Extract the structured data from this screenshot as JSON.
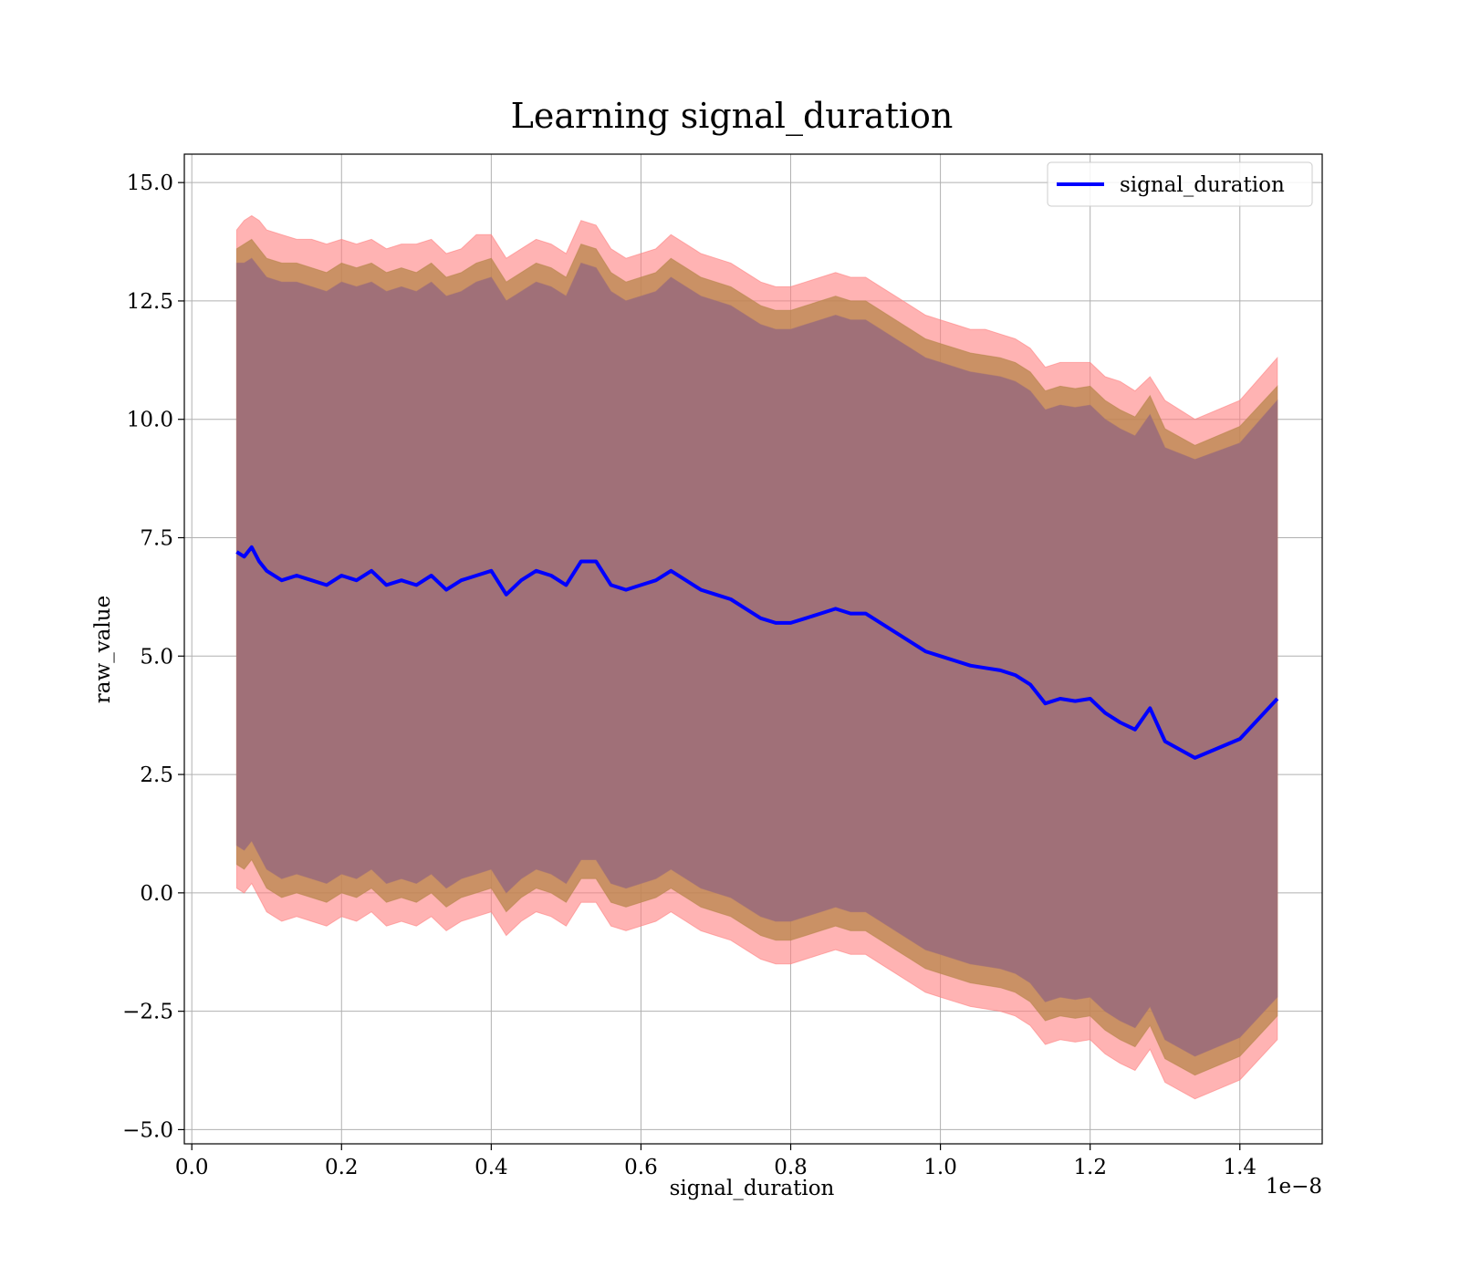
{
  "chart_data": {
    "type": "area",
    "title": "Learning signal_duration",
    "xlabel": "signal_duration",
    "ylabel": "raw_value",
    "x_offset_label": "1e−8",
    "xlim": [
      -0.01,
      1.51
    ],
    "ylim": [
      -5.3,
      15.6
    ],
    "xticks": [
      0.0,
      0.2,
      0.4,
      0.6,
      0.8,
      1.0,
      1.2,
      1.4
    ],
    "xtick_labels": [
      "0.0",
      "0.2",
      "0.4",
      "0.6",
      "0.8",
      "1.0",
      "1.2",
      "1.4"
    ],
    "yticks": [
      -5.0,
      -2.5,
      0.0,
      2.5,
      5.0,
      7.5,
      10.0,
      12.5,
      15.0
    ],
    "ytick_labels": [
      "−5.0",
      "−2.5",
      "0.0",
      "2.5",
      "5.0",
      "7.5",
      "10.0",
      "12.5",
      "15.0"
    ],
    "grid": true,
    "legend_position": "upper right",
    "colors": {
      "mean_line": "#0000ff",
      "outer_band": "#ff8080",
      "middle_band": "#b8864b",
      "inner_band": "#a07078"
    },
    "series": [
      {
        "name": "signal_duration",
        "x": [
          0.06,
          0.07,
          0.08,
          0.09,
          0.1,
          0.12,
          0.14,
          0.16,
          0.18,
          0.2,
          0.22,
          0.24,
          0.26,
          0.28,
          0.3,
          0.32,
          0.34,
          0.36,
          0.38,
          0.4,
          0.42,
          0.44,
          0.46,
          0.48,
          0.5,
          0.52,
          0.54,
          0.56,
          0.58,
          0.6,
          0.62,
          0.64,
          0.66,
          0.68,
          0.7,
          0.72,
          0.74,
          0.76,
          0.78,
          0.8,
          0.82,
          0.84,
          0.86,
          0.88,
          0.9,
          0.92,
          0.94,
          0.96,
          0.98,
          1.0,
          1.02,
          1.04,
          1.06,
          1.08,
          1.1,
          1.12,
          1.14,
          1.16,
          1.18,
          1.2,
          1.22,
          1.24,
          1.26,
          1.28,
          1.3,
          1.34,
          1.4,
          1.45
        ],
        "y": [
          7.2,
          7.1,
          7.3,
          7.0,
          6.8,
          6.6,
          6.7,
          6.6,
          6.5,
          6.7,
          6.6,
          6.8,
          6.5,
          6.6,
          6.5,
          6.7,
          6.4,
          6.6,
          6.7,
          6.8,
          6.3,
          6.6,
          6.8,
          6.7,
          6.5,
          7.0,
          7.0,
          6.5,
          6.4,
          6.5,
          6.6,
          6.8,
          6.6,
          6.4,
          6.3,
          6.2,
          6.0,
          5.8,
          5.7,
          5.7,
          5.8,
          5.9,
          6.0,
          5.9,
          5.9,
          5.7,
          5.5,
          5.3,
          5.1,
          5.0,
          4.9,
          4.8,
          4.75,
          4.7,
          4.6,
          4.4,
          4.0,
          4.1,
          4.05,
          4.1,
          3.8,
          3.6,
          3.45,
          3.9,
          3.2,
          2.85,
          3.25,
          4.1
        ]
      }
    ],
    "bands": [
      {
        "name": "outer",
        "upper": [
          14.0,
          14.2,
          14.3,
          14.2,
          14.0,
          13.9,
          13.8,
          13.8,
          13.7,
          13.8,
          13.7,
          13.8,
          13.6,
          13.7,
          13.7,
          13.8,
          13.5,
          13.6,
          13.9,
          13.9,
          13.4,
          13.6,
          13.8,
          13.7,
          13.5,
          14.2,
          14.1,
          13.6,
          13.4,
          13.5,
          13.6,
          13.9,
          13.7,
          13.5,
          13.4,
          13.3,
          13.1,
          12.9,
          12.8,
          12.8,
          12.9,
          13.0,
          13.1,
          13.0,
          13.0,
          12.8,
          12.6,
          12.4,
          12.2,
          12.1,
          12.0,
          11.9,
          11.9,
          11.8,
          11.7,
          11.5,
          11.1,
          11.2,
          11.2,
          11.2,
          10.9,
          10.8,
          10.6,
          10.9,
          10.4,
          10.0,
          10.4,
          11.3
        ],
        "lower": [
          0.1,
          0.0,
          0.2,
          -0.1,
          -0.4,
          -0.6,
          -0.5,
          -0.6,
          -0.7,
          -0.5,
          -0.6,
          -0.4,
          -0.7,
          -0.6,
          -0.7,
          -0.5,
          -0.8,
          -0.6,
          -0.5,
          -0.4,
          -0.9,
          -0.6,
          -0.4,
          -0.5,
          -0.7,
          -0.2,
          -0.2,
          -0.7,
          -0.8,
          -0.7,
          -0.6,
          -0.4,
          -0.6,
          -0.8,
          -0.9,
          -1.0,
          -1.2,
          -1.4,
          -1.5,
          -1.5,
          -1.4,
          -1.3,
          -1.2,
          -1.3,
          -1.3,
          -1.5,
          -1.7,
          -1.9,
          -2.1,
          -2.2,
          -2.3,
          -2.4,
          -2.45,
          -2.5,
          -2.6,
          -2.8,
          -3.2,
          -3.1,
          -3.15,
          -3.1,
          -3.4,
          -3.6,
          -3.75,
          -3.3,
          -4.0,
          -4.35,
          -3.95,
          -3.1
        ]
      },
      {
        "name": "middle",
        "upper": [
          13.6,
          13.7,
          13.8,
          13.6,
          13.4,
          13.3,
          13.3,
          13.2,
          13.1,
          13.3,
          13.2,
          13.3,
          13.1,
          13.2,
          13.1,
          13.3,
          13.0,
          13.1,
          13.3,
          13.4,
          12.9,
          13.1,
          13.3,
          13.2,
          13.0,
          13.7,
          13.6,
          13.1,
          12.9,
          13.0,
          13.1,
          13.4,
          13.2,
          13.0,
          12.9,
          12.8,
          12.6,
          12.4,
          12.3,
          12.3,
          12.4,
          12.5,
          12.6,
          12.5,
          12.5,
          12.3,
          12.1,
          11.9,
          11.7,
          11.6,
          11.5,
          11.4,
          11.35,
          11.3,
          11.2,
          11.0,
          10.6,
          10.7,
          10.65,
          10.7,
          10.4,
          10.2,
          10.05,
          10.5,
          9.8,
          9.45,
          9.85,
          10.7
        ],
        "lower": [
          0.6,
          0.5,
          0.7,
          0.4,
          0.1,
          -0.1,
          0.0,
          -0.1,
          -0.2,
          0.0,
          -0.1,
          0.1,
          -0.2,
          -0.1,
          -0.2,
          0.0,
          -0.3,
          -0.1,
          0.0,
          0.1,
          -0.4,
          -0.1,
          0.1,
          0.0,
          -0.2,
          0.3,
          0.3,
          -0.2,
          -0.3,
          -0.2,
          -0.1,
          0.1,
          -0.1,
          -0.3,
          -0.4,
          -0.5,
          -0.7,
          -0.9,
          -1.0,
          -1.0,
          -0.9,
          -0.8,
          -0.7,
          -0.8,
          -0.8,
          -1.0,
          -1.2,
          -1.4,
          -1.6,
          -1.7,
          -1.8,
          -1.9,
          -1.95,
          -2.0,
          -2.1,
          -2.3,
          -2.7,
          -2.6,
          -2.65,
          -2.6,
          -2.9,
          -3.1,
          -3.25,
          -2.8,
          -3.5,
          -3.85,
          -3.45,
          -2.6
        ]
      },
      {
        "name": "inner",
        "upper": [
          13.3,
          13.3,
          13.4,
          13.2,
          13.0,
          12.9,
          12.9,
          12.8,
          12.7,
          12.9,
          12.8,
          12.9,
          12.7,
          12.8,
          12.7,
          12.9,
          12.6,
          12.7,
          12.9,
          13.0,
          12.5,
          12.7,
          12.9,
          12.8,
          12.6,
          13.3,
          13.2,
          12.7,
          12.5,
          12.6,
          12.7,
          13.0,
          12.8,
          12.6,
          12.5,
          12.4,
          12.2,
          12.0,
          11.9,
          11.9,
          12.0,
          12.1,
          12.2,
          12.1,
          12.1,
          11.9,
          11.7,
          11.5,
          11.3,
          11.2,
          11.1,
          11.0,
          10.95,
          10.9,
          10.8,
          10.6,
          10.2,
          10.3,
          10.25,
          10.3,
          10.0,
          9.8,
          9.65,
          10.1,
          9.4,
          9.15,
          9.5,
          10.4
        ],
        "lower": [
          1.0,
          0.9,
          1.1,
          0.8,
          0.5,
          0.3,
          0.4,
          0.3,
          0.2,
          0.4,
          0.3,
          0.5,
          0.2,
          0.3,
          0.2,
          0.4,
          0.1,
          0.3,
          0.4,
          0.5,
          0.0,
          0.3,
          0.5,
          0.4,
          0.2,
          0.7,
          0.7,
          0.2,
          0.1,
          0.2,
          0.3,
          0.5,
          0.3,
          0.1,
          0.0,
          -0.1,
          -0.3,
          -0.5,
          -0.6,
          -0.6,
          -0.5,
          -0.4,
          -0.3,
          -0.4,
          -0.4,
          -0.6,
          -0.8,
          -1.0,
          -1.2,
          -1.3,
          -1.4,
          -1.5,
          -1.55,
          -1.6,
          -1.7,
          -1.9,
          -2.3,
          -2.2,
          -2.25,
          -2.2,
          -2.5,
          -2.7,
          -2.85,
          -2.4,
          -3.1,
          -3.45,
          -3.05,
          -2.2
        ]
      }
    ]
  }
}
